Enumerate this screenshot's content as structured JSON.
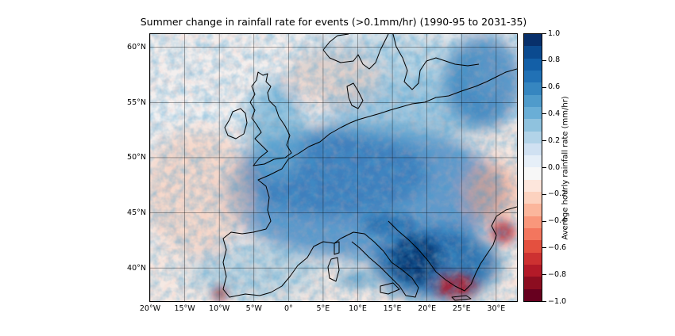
{
  "map": {
    "title": "Summer change in rainfall rate for events (>0.1mm/hr) (1990-95 to 2031-35)",
    "extent": {
      "lon_min": -20,
      "lon_max": 33,
      "lat_min": 37,
      "lat_max": 61.2
    },
    "lon_ticks": [
      {
        "value": -20,
        "label": "20°W"
      },
      {
        "value": -15,
        "label": "15°W"
      },
      {
        "value": -10,
        "label": "10°W"
      },
      {
        "value": -5,
        "label": "5°W"
      },
      {
        "value": 0,
        "label": "0°"
      },
      {
        "value": 5,
        "label": "5°E"
      },
      {
        "value": 10,
        "label": "10°E"
      },
      {
        "value": 15,
        "label": "15°E"
      },
      {
        "value": 20,
        "label": "20°E"
      },
      {
        "value": 25,
        "label": "25°E"
      },
      {
        "value": 30,
        "label": "30°E"
      }
    ],
    "lat_ticks": [
      {
        "value": 60,
        "label": "60°N"
      },
      {
        "value": 55,
        "label": "55°N"
      },
      {
        "value": 50,
        "label": "50°N"
      },
      {
        "value": 45,
        "label": "45°N"
      },
      {
        "value": 40,
        "label": "40°N"
      }
    ],
    "gridlines": true
  },
  "colorbar": {
    "label": "Average hourly rainfall rate (mm/hr)",
    "min": -1.0,
    "max": 1.0,
    "ticks": [
      {
        "value": 1.0,
        "label": "1.0"
      },
      {
        "value": 0.8,
        "label": "0.8"
      },
      {
        "value": 0.6,
        "label": "0.6"
      },
      {
        "value": 0.4,
        "label": "0.4"
      },
      {
        "value": 0.2,
        "label": "0.2"
      },
      {
        "value": 0.0,
        "label": "0.0"
      },
      {
        "value": -0.2,
        "label": "−0.2"
      },
      {
        "value": -0.4,
        "label": "−0.4"
      },
      {
        "value": -0.6,
        "label": "−0.6"
      },
      {
        "value": -0.8,
        "label": "−0.8"
      },
      {
        "value": -1.0,
        "label": "−1.0"
      }
    ],
    "colors_top_to_bottom": [
      "#08306b",
      "#0b4a8f",
      "#135fa7",
      "#2171b5",
      "#3686c0",
      "#4f9bcb",
      "#6aaed6",
      "#8fc2de",
      "#b2d3e8",
      "#d0e1f2",
      "#e6eff8",
      "#f7f7f7",
      "#fde6dc",
      "#fcd2bf",
      "#fbb69c",
      "#f9977b",
      "#f3765e",
      "#e4503f",
      "#cd3131",
      "#b31a28",
      "#8c0d20",
      "#67001f"
    ]
  }
}
